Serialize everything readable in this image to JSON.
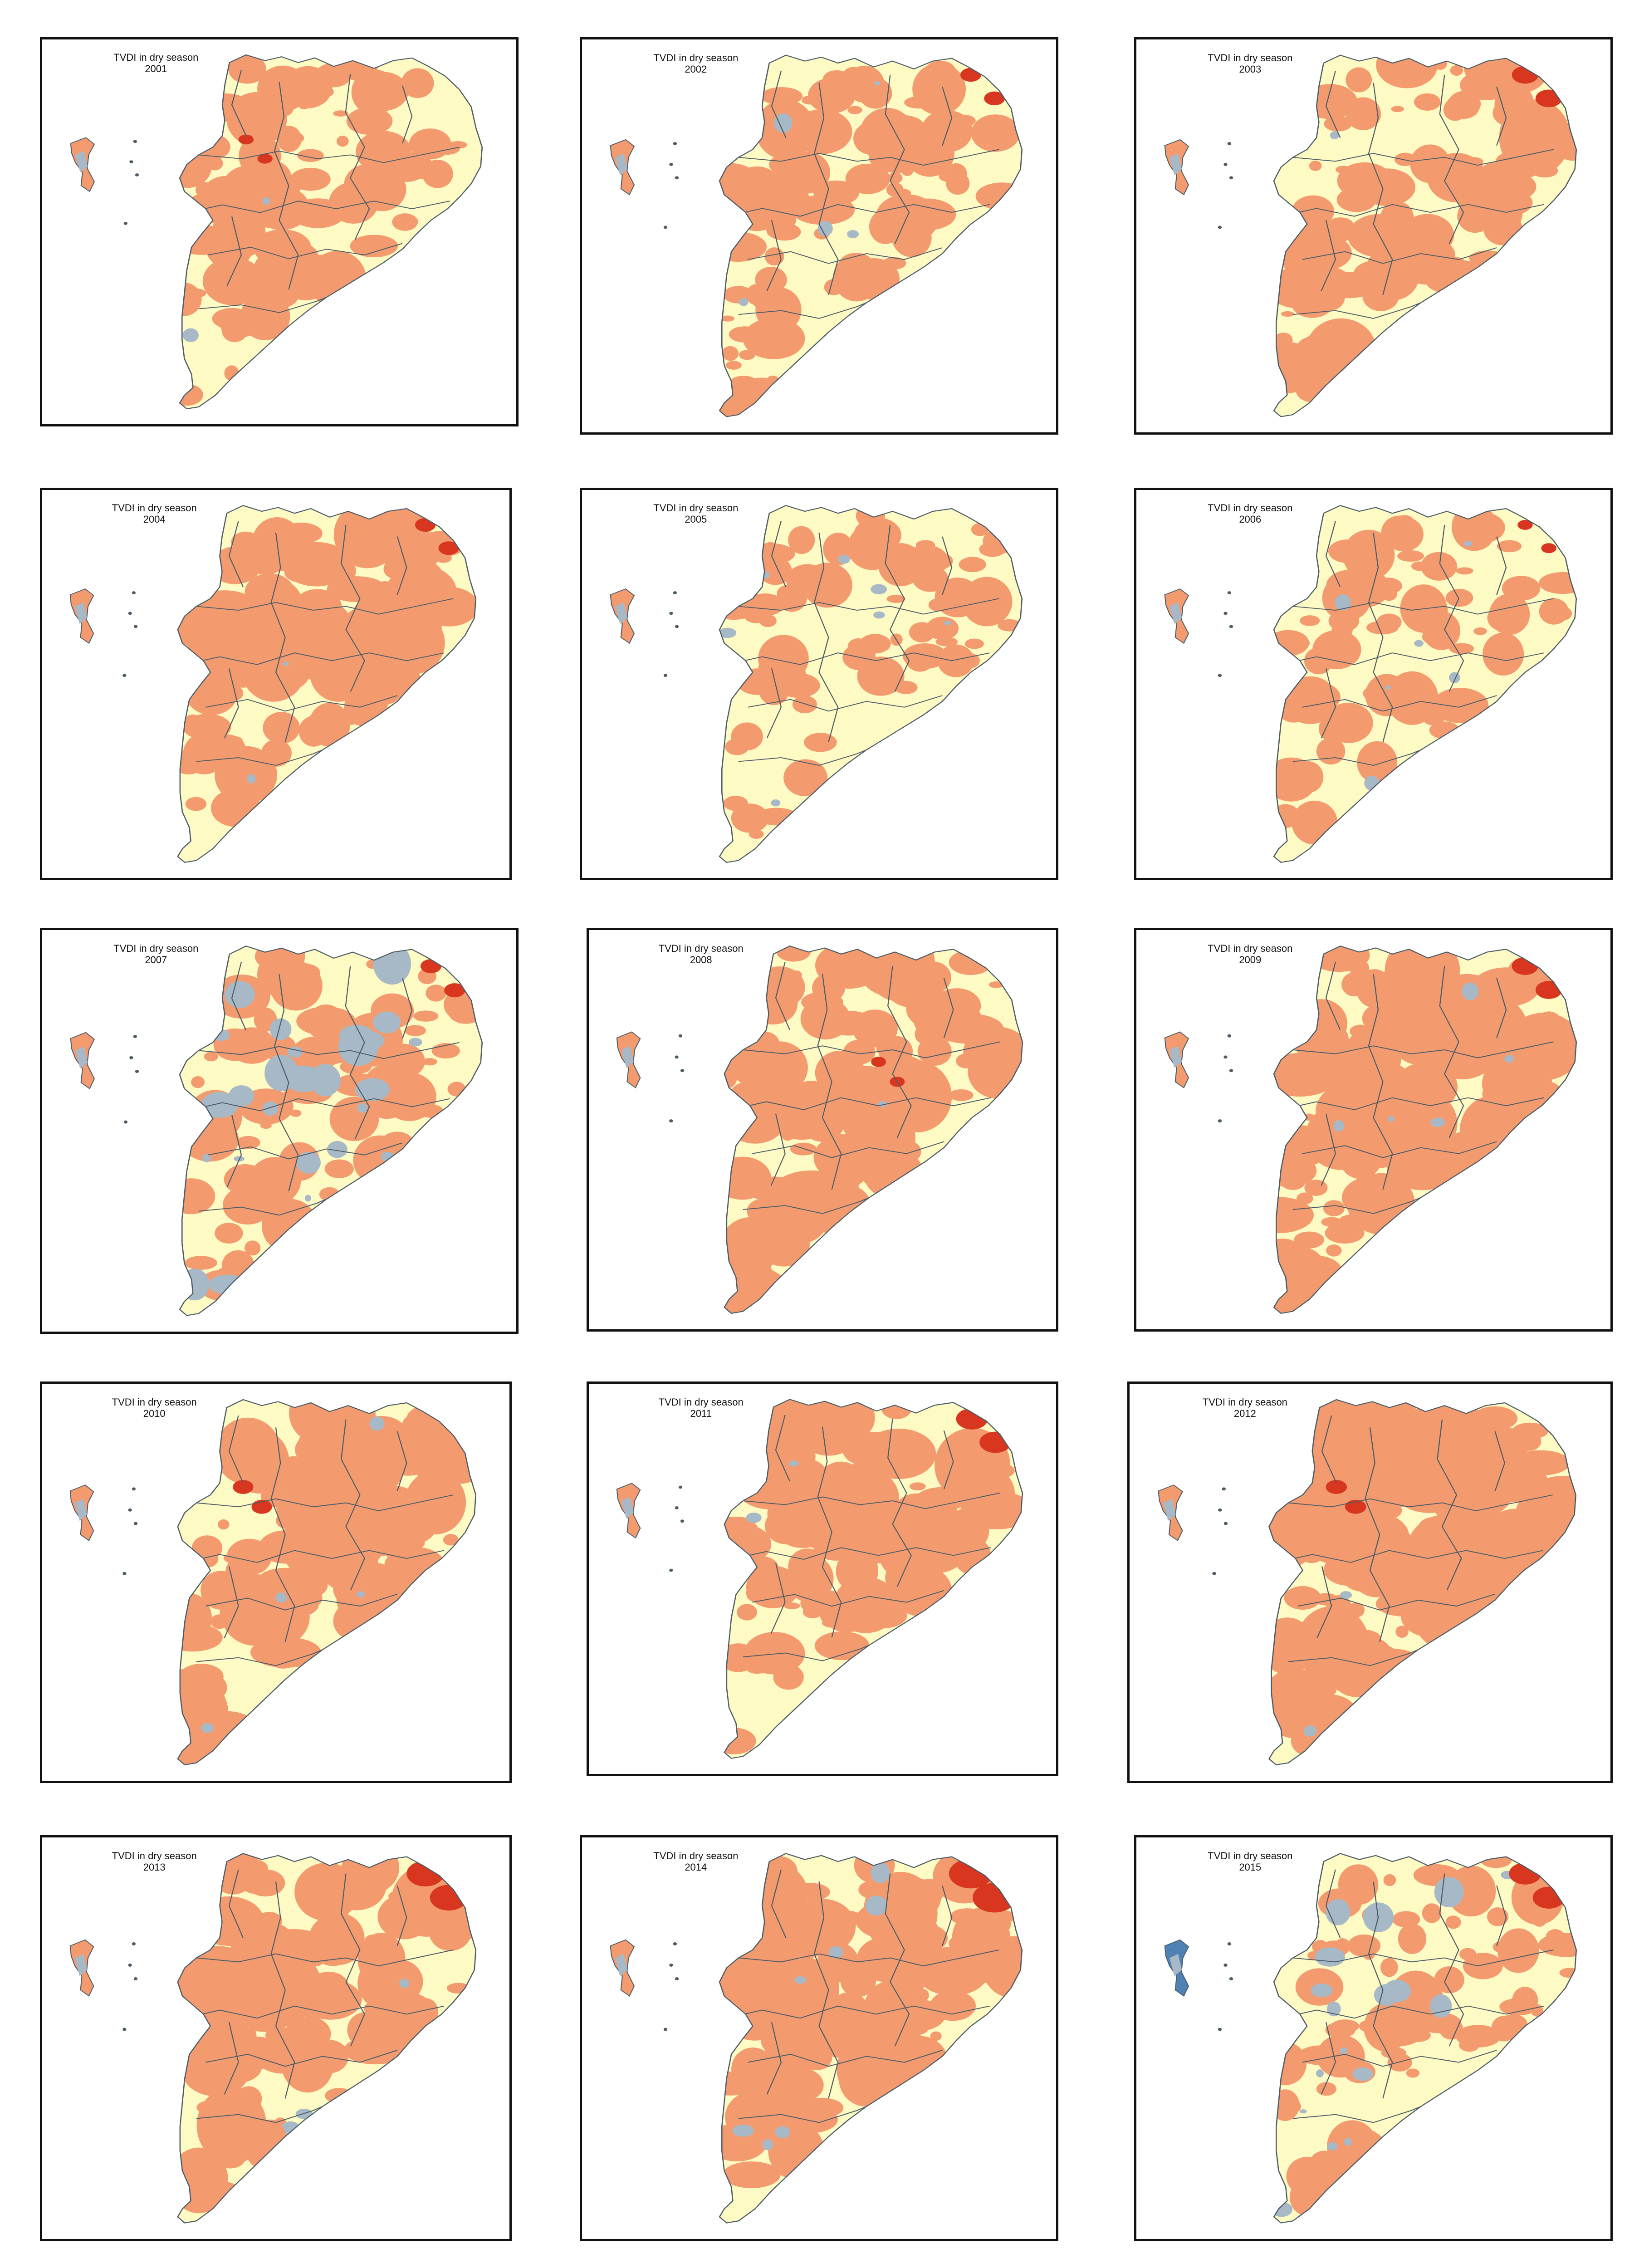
{
  "colors": {
    "background": "#ffffff",
    "land": "#fefac4",
    "moderate": "#f39b6f",
    "severe": "#d9361f",
    "wet": "#a7b9c7",
    "very_wet": "#4f81b5",
    "boundary": "#4d5d68",
    "frame": "#111111"
  },
  "panels": [
    {
      "title": "TVDI in dry season",
      "year": "2001",
      "moderate": 0.34,
      "severe": 0.01,
      "wet": 0.02,
      "hotspot": "north-west"
    },
    {
      "title": "TVDI in dry season",
      "year": "2002",
      "moderate": 0.36,
      "severe": 0.02,
      "wet": 0.04,
      "hotspot": "north-east"
    },
    {
      "title": "TVDI in dry season",
      "year": "2003",
      "moderate": 0.5,
      "severe": 0.03,
      "wet": 0.01,
      "hotspot": "north-east"
    },
    {
      "title": "TVDI in dry season",
      "year": "2004",
      "moderate": 0.48,
      "severe": 0.02,
      "wet": 0.02,
      "hotspot": "north-east"
    },
    {
      "title": "TVDI in dry season",
      "year": "2005",
      "moderate": 0.24,
      "severe": 0.0,
      "wet": 0.06,
      "hotspot": "none"
    },
    {
      "title": "TVDI in dry season",
      "year": "2006",
      "moderate": 0.26,
      "severe": 0.01,
      "wet": 0.05,
      "hotspot": "north-east"
    },
    {
      "title": "TVDI in dry season",
      "year": "2007",
      "moderate": 0.3,
      "severe": 0.02,
      "wet": 0.22,
      "hotspot": "north-east"
    },
    {
      "title": "TVDI in dry season",
      "year": "2008",
      "moderate": 0.5,
      "severe": 0.01,
      "wet": 0.01,
      "hotspot": "centre"
    },
    {
      "title": "TVDI in dry season",
      "year": "2009",
      "moderate": 0.6,
      "severe": 0.03,
      "wet": 0.04,
      "hotspot": "north-east"
    },
    {
      "title": "TVDI in dry season",
      "year": "2010",
      "moderate": 0.52,
      "severe": 0.02,
      "wet": 0.03,
      "hotspot": "north-west"
    },
    {
      "title": "TVDI in dry season",
      "year": "2011",
      "moderate": 0.56,
      "severe": 0.04,
      "wet": 0.02,
      "hotspot": "north-east"
    },
    {
      "title": "TVDI in dry season",
      "year": "2012",
      "moderate": 0.66,
      "severe": 0.02,
      "wet": 0.02,
      "hotspot": "north-west"
    },
    {
      "title": "TVDI in dry season",
      "year": "2013",
      "moderate": 0.5,
      "severe": 0.05,
      "wet": 0.03,
      "hotspot": "north-east"
    },
    {
      "title": "TVDI in dry season",
      "year": "2014",
      "moderate": 0.52,
      "severe": 0.06,
      "wet": 0.06,
      "hotspot": "north-east"
    },
    {
      "title": "TVDI in dry season",
      "year": "2015",
      "moderate": 0.26,
      "severe": 0.04,
      "wet": 0.14,
      "hotspot": "north-east"
    }
  ]
}
